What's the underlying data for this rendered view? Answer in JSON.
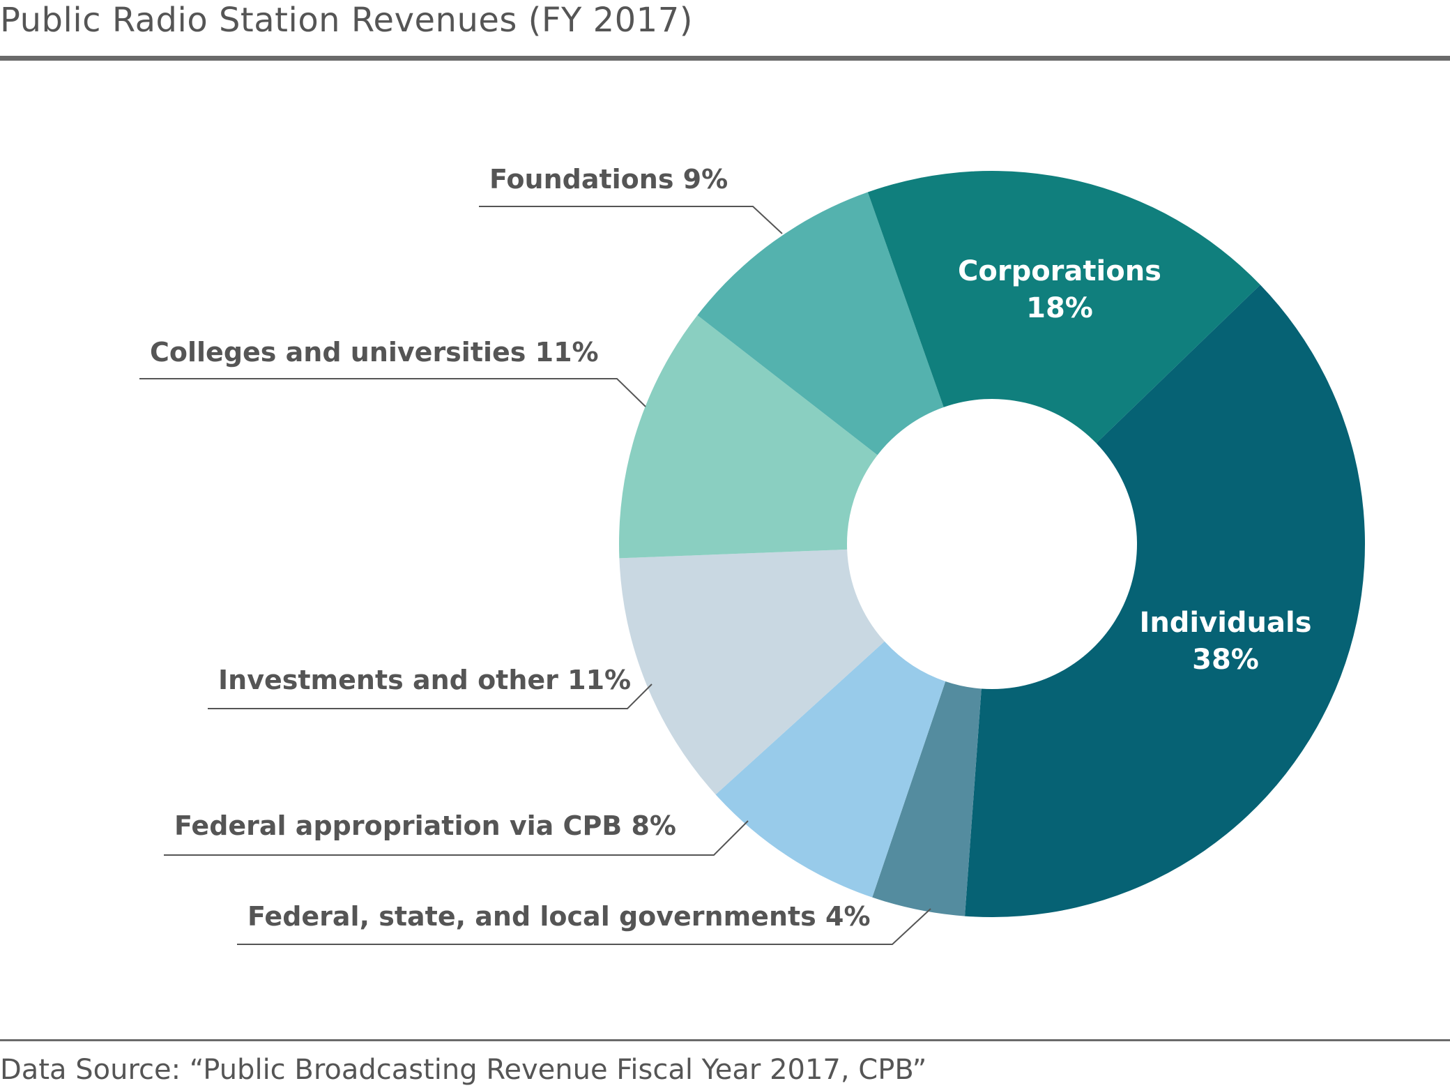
{
  "chart_data": {
    "type": "pie",
    "variant": "donut",
    "title": "Public Radio Station Revenues (FY 2017)",
    "source": "Data Source: “Public Broadcasting Revenue Fiscal Year 2017, CPB”",
    "slices": [
      {
        "name": "Individuals",
        "value": 38,
        "value_label": "38%",
        "color": "#066274",
        "label_placement": "inside"
      },
      {
        "name": "Federal, state, and local governments",
        "value": 4,
        "value_label": "4%",
        "color": "#548c9f",
        "label_placement": "outside"
      },
      {
        "name": "Federal appropriation via CPB",
        "value": 8,
        "value_label": "8%",
        "color": "#98cbea",
        "label_placement": "outside"
      },
      {
        "name": "Investments and other",
        "value": 11,
        "value_label": "11%",
        "color": "#c9d8e2",
        "label_placement": "outside"
      },
      {
        "name": "Colleges and universities",
        "value": 11,
        "value_label": "11%",
        "color": "#8acfc1",
        "label_placement": "outside"
      },
      {
        "name": "Foundations",
        "value": 9,
        "value_label": "9%",
        "color": "#54b2ae",
        "label_placement": "outside"
      },
      {
        "name": "Corporations",
        "value": 18,
        "value_label": "18%",
        "color": "#107f7d",
        "label_placement": "inside"
      }
    ]
  }
}
